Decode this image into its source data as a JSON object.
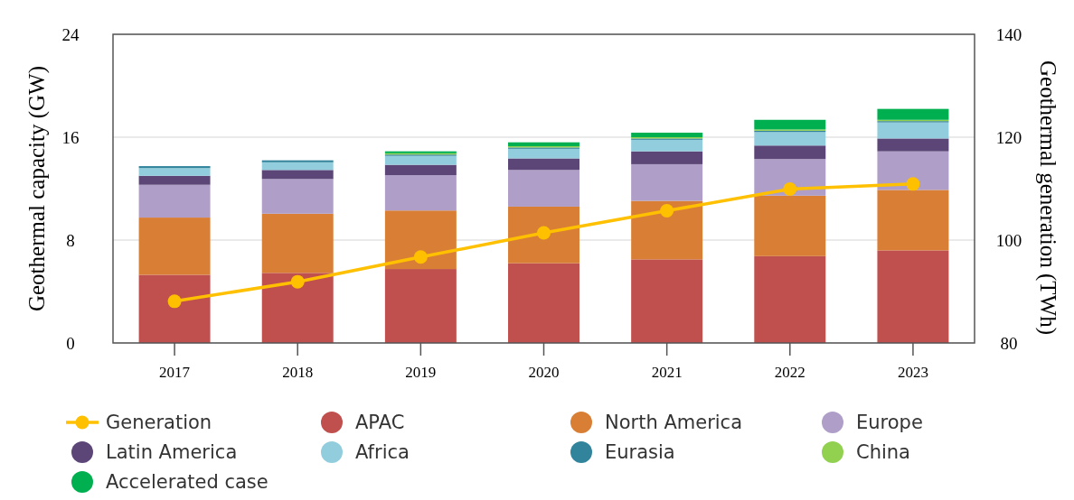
{
  "chart_data": {
    "type": "bar",
    "stacked": true,
    "ylabel": "Geothermal capacity (GW)",
    "y2label": "Geothermal generation (TWh)",
    "categories": [
      "2017",
      "2018",
      "2019",
      "2020",
      "2021",
      "2022",
      "2023"
    ],
    "ylim": [
      0,
      24
    ],
    "yticks": [
      0,
      8,
      16,
      24
    ],
    "y2lim": [
      80,
      140
    ],
    "y2ticks": [
      80,
      100,
      120,
      140
    ],
    "grid": "y",
    "legend": "bottom",
    "series": [
      {
        "name": "Generation",
        "type": "line",
        "axis": "y2",
        "marker": "circle",
        "color": "#ffc000",
        "values": [
          88.1,
          91.9,
          96.7,
          101.4,
          105.7,
          109.9,
          110.9
        ]
      },
      {
        "name": "APAC",
        "color": "#c0504d",
        "values": [
          5.3,
          5.45,
          5.75,
          6.2,
          6.5,
          6.75,
          7.2
        ]
      },
      {
        "name": "North America",
        "color": "#d97f35",
        "values": [
          4.45,
          4.6,
          4.55,
          4.4,
          4.55,
          4.7,
          4.7
        ]
      },
      {
        "name": "Europe",
        "color": "#ae9ec8",
        "values": [
          2.55,
          2.7,
          2.75,
          2.85,
          2.85,
          2.85,
          3.0
        ]
      },
      {
        "name": "Latin America",
        "color": "#5c4677",
        "values": [
          0.7,
          0.7,
          0.8,
          0.9,
          1.0,
          1.05,
          1.0
        ]
      },
      {
        "name": "Africa",
        "color": "#92cddd",
        "values": [
          0.6,
          0.6,
          0.7,
          0.75,
          0.9,
          1.05,
          1.25
        ]
      },
      {
        "name": "Eurasia",
        "color": "#31849b",
        "values": [
          0.15,
          0.15,
          0.1,
          0.1,
          0.1,
          0.1,
          0.1
        ]
      },
      {
        "name": "China",
        "color": "#92d050",
        "values": [
          0,
          0,
          0.1,
          0.1,
          0.1,
          0.1,
          0.1
        ]
      },
      {
        "name": "Accelerated case",
        "color": "#00b050",
        "values": [
          0,
          0,
          0.15,
          0.3,
          0.35,
          0.75,
          0.85
        ]
      }
    ]
  }
}
